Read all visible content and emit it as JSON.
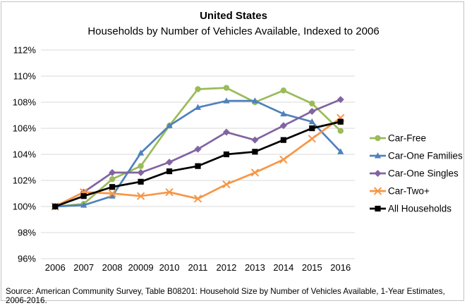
{
  "title": "United States",
  "subtitle": "Households  by Number  of Vehicles  Available, Indexed  to 2006",
  "source": "Source: American Community Survey,  Table B08201: Household  Size by Number  of Vehicles  Available, 1-Year Estimates, 2006-2016.",
  "chart_data": {
    "type": "line",
    "categories": [
      "2006",
      "2007",
      "2008",
      "20009",
      "2010",
      "2011",
      "2012",
      "2013",
      "2014",
      "2015",
      "2016"
    ],
    "series": [
      {
        "name": "Car-Free",
        "color": "#9bbb59",
        "marker": "circle",
        "values": [
          100.0,
          100.2,
          102.1,
          103.1,
          106.2,
          109.0,
          109.1,
          108.0,
          108.9,
          107.9,
          105.8
        ]
      },
      {
        "name": "Car-One Families",
        "color": "#4f81bd",
        "marker": "triangle",
        "values": [
          100.0,
          100.1,
          100.8,
          104.1,
          106.2,
          107.6,
          108.1,
          108.1,
          107.1,
          106.5,
          104.2
        ]
      },
      {
        "name": "Car-One Singles",
        "color": "#8064a2",
        "marker": "diamond",
        "values": [
          100.0,
          101.1,
          102.6,
          102.6,
          103.4,
          104.4,
          105.7,
          105.1,
          106.2,
          107.3,
          108.2
        ]
      },
      {
        "name": "Car-Two+",
        "color": "#f79646",
        "marker": "x",
        "values": [
          100.0,
          101.1,
          101.0,
          100.8,
          101.1,
          100.6,
          101.7,
          102.6,
          103.6,
          105.2,
          106.8
        ]
      },
      {
        "name": "All Households",
        "color": "#000000",
        "marker": "square",
        "values": [
          100.0,
          100.8,
          101.5,
          101.9,
          102.7,
          103.1,
          104.0,
          104.2,
          105.1,
          106.0,
          106.5
        ]
      }
    ],
    "ylim": [
      96,
      112
    ],
    "ytick_step": 2,
    "ytick_suffix": "%",
    "xlabel": "",
    "ylabel": "",
    "grid": "horizontal",
    "gridline_color": "#d9d9d9",
    "legend_position": "right"
  }
}
